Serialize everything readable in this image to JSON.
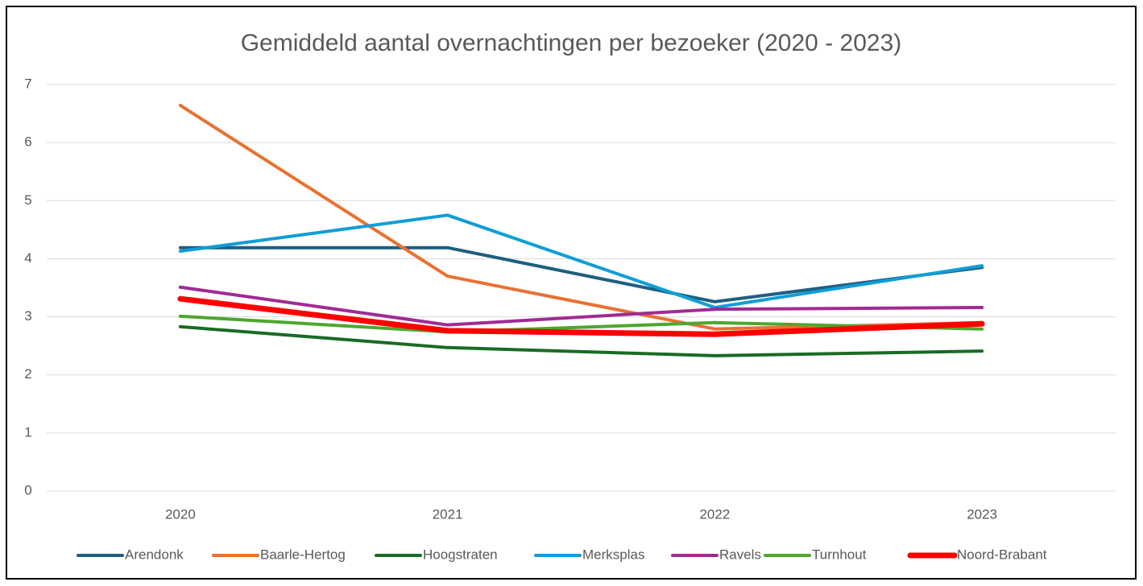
{
  "chart_data": {
    "type": "line",
    "title": "Gemiddeld aantal overnachtingen per bezoeker (2020 - 2023)",
    "categories": [
      "2020",
      "2021",
      "2022",
      "2023"
    ],
    "ylim": [
      0,
      7
    ],
    "yticks": [
      0,
      1,
      2,
      3,
      4,
      5,
      6,
      7
    ],
    "grid": true,
    "legend": "bottom",
    "series": [
      {
        "name": "Arendonk",
        "color": "#1e5f80",
        "values": [
          4.19,
          4.19,
          3.26,
          3.85
        ]
      },
      {
        "name": "Baarle-Hertog",
        "color": "#e97132",
        "values": [
          6.64,
          3.7,
          2.79,
          2.9
        ]
      },
      {
        "name": "Hoogstraten",
        "color": "#196b24",
        "values": [
          2.83,
          2.47,
          2.33,
          2.41
        ]
      },
      {
        "name": "Merksplas",
        "color": "#0f9ed5",
        "values": [
          4.13,
          4.75,
          3.16,
          3.88
        ]
      },
      {
        "name": "Ravels",
        "color": "#a02b93",
        "values": [
          3.51,
          2.86,
          3.13,
          3.16
        ]
      },
      {
        "name": "Turnhout",
        "color": "#4ea72e",
        "values": [
          3.01,
          2.74,
          2.9,
          2.79
        ]
      },
      {
        "name": "Noord-Brabant",
        "color": "#ff0000",
        "values": [
          3.31,
          2.76,
          2.7,
          2.88
        ]
      }
    ]
  }
}
